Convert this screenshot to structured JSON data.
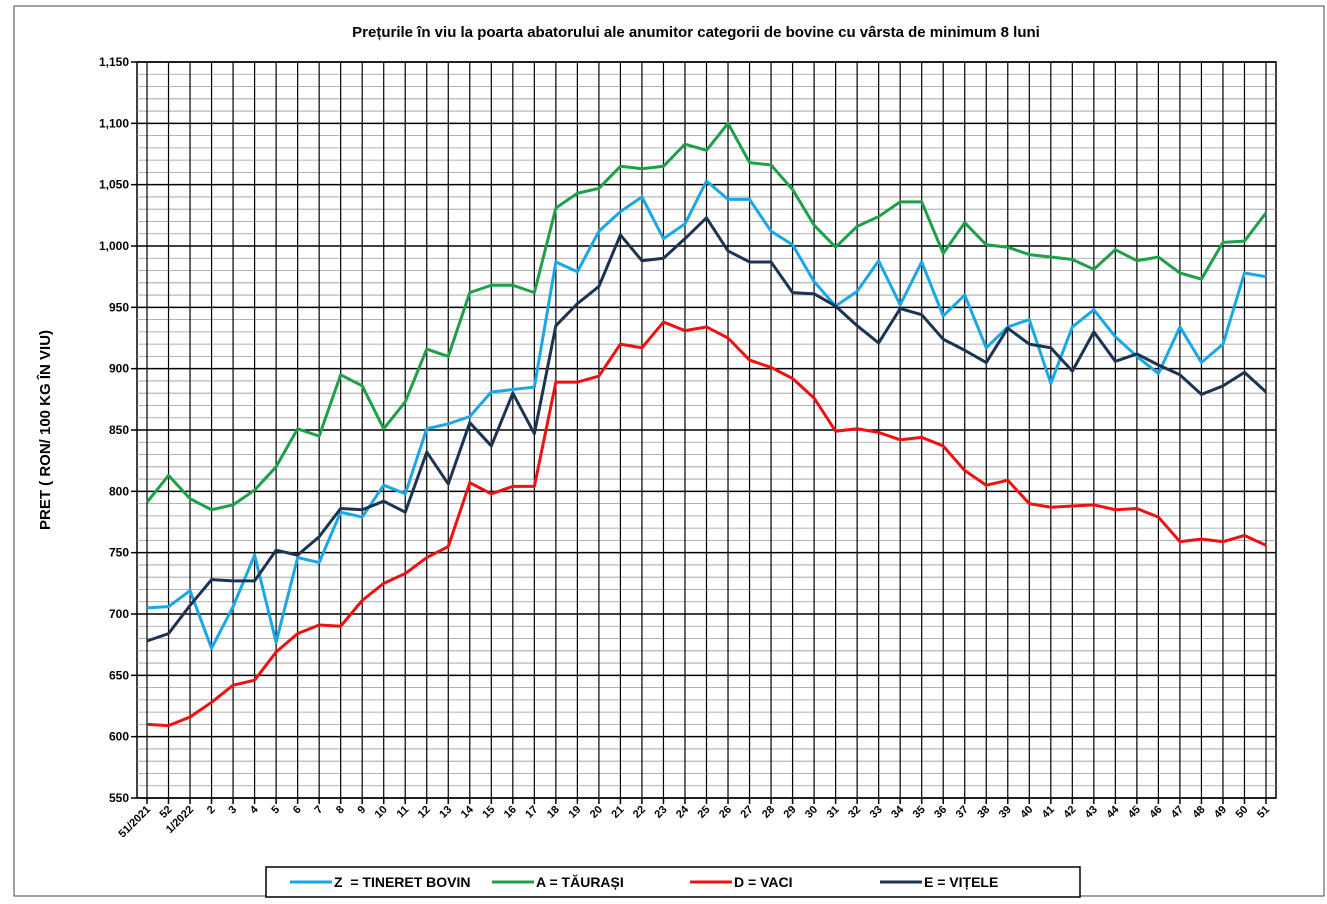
{
  "chart_data": {
    "type": "line",
    "title": "Prețurile în viu la poarta abatorului ale anumitor categorii de  bovine cu vârsta de minimum 8 luni",
    "y_label": "PRET ( RON/ 100 KG ÎN VIU)",
    "categories": [
      "51/2021",
      "52",
      "1/2022",
      "2",
      "3",
      "4",
      "5",
      "6",
      "7",
      "8",
      "9",
      "10",
      "11",
      "12",
      "13",
      "14",
      "15",
      "16",
      "17",
      "18",
      "19",
      "20",
      "21",
      "22",
      "23",
      "24",
      "25",
      "26",
      "27",
      "28",
      "29",
      "30",
      "31",
      "32",
      "33",
      "34",
      "35",
      "36",
      "37",
      "38",
      "39",
      "40",
      "41",
      "42",
      "43",
      "44",
      "45",
      "46",
      "47",
      "48",
      "49",
      "50",
      "51"
    ],
    "series": [
      {
        "name": "Z  = TINERET BOVIN",
        "color": "#1aa7e6",
        "values": [
          705,
          706,
          719,
          672,
          706,
          748,
          677,
          746,
          742,
          783,
          779,
          805,
          798,
          851,
          855,
          861,
          881,
          883,
          885,
          987,
          979,
          1012,
          1028,
          1040,
          1006,
          1018,
          1053,
          1038,
          1038,
          1012,
          1001,
          971,
          951,
          963,
          988,
          952,
          987,
          943,
          960,
          917,
          934,
          940,
          888,
          934,
          948,
          926,
          910,
          896,
          934,
          905,
          920,
          978,
          975
        ]
      },
      {
        "name": "A = TĂURAȘI",
        "color": "#1ea04a",
        "values": [
          791,
          813,
          794,
          785,
          789,
          801,
          820,
          851,
          845,
          895,
          886,
          851,
          873,
          916,
          910,
          962,
          968,
          968,
          962,
          1031,
          1043,
          1047,
          1065,
          1063,
          1065,
          1083,
          1078,
          1100,
          1068,
          1066,
          1046,
          1017,
          999,
          1016,
          1024,
          1036,
          1036,
          994,
          1019,
          1001,
          999,
          993,
          991,
          989,
          981,
          997,
          988,
          991,
          978,
          973,
          1003,
          1004,
          1027
        ]
      },
      {
        "name": "D = VACI",
        "color": "#ee1111",
        "values": [
          610,
          609,
          616,
          628,
          642,
          646,
          669,
          684,
          691,
          690,
          711,
          725,
          733,
          746,
          755,
          807,
          798,
          804,
          804,
          889,
          889,
          894,
          920,
          917,
          938,
          931,
          934,
          925,
          907,
          901,
          892,
          876,
          849,
          851,
          848,
          842,
          844,
          837,
          817,
          805,
          809,
          790,
          787,
          788,
          789,
          785,
          786,
          779,
          759,
          761,
          759,
          764,
          756
        ]
      },
      {
        "name": "E = VIȚELE",
        "color": "#1c3352",
        "values": [
          678,
          684,
          707,
          728,
          727,
          727,
          752,
          748,
          763,
          786,
          785,
          792,
          783,
          832,
          806,
          856,
          837,
          880,
          847,
          935,
          953,
          967,
          1009,
          988,
          990,
          1006,
          1023,
          996,
          987,
          987,
          962,
          961,
          951,
          935,
          921,
          949,
          944,
          924,
          915,
          905,
          933,
          920,
          917,
          898,
          930,
          906,
          912,
          903,
          895,
          879,
          886,
          897,
          881
        ]
      }
    ],
    "ylim": [
      550,
      1150
    ],
    "yticks": [
      550,
      600,
      650,
      700,
      750,
      800,
      850,
      900,
      950,
      {
        "value": 1000,
        "label": "1,000"
      },
      {
        "value": 1050,
        "label": "1,050"
      },
      {
        "value": 1100,
        "label": "1,100"
      },
      {
        "value": 1150,
        "label": "1,150"
      }
    ],
    "grid": true
  }
}
